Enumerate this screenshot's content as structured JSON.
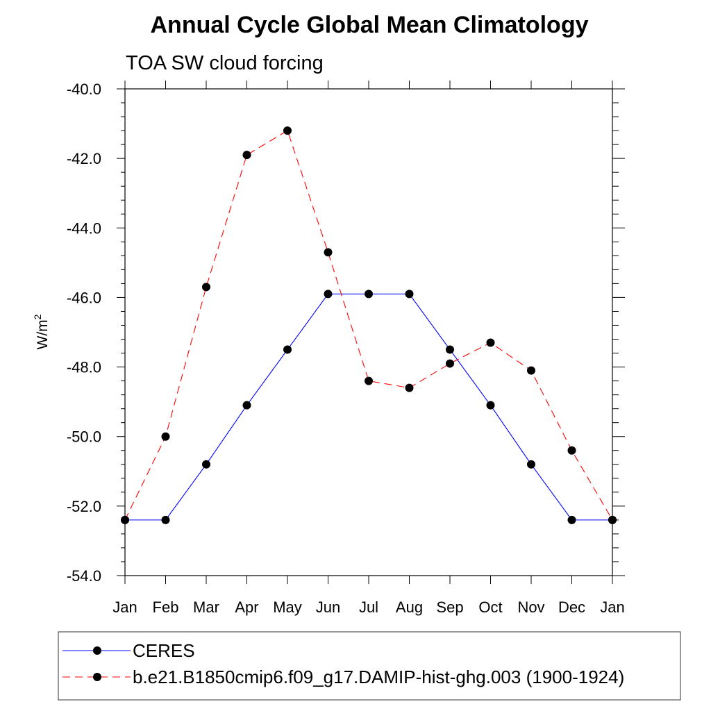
{
  "chart_data": {
    "type": "line",
    "title": "Annual Cycle Global Mean Climatology",
    "subtitle": "TOA SW cloud forcing",
    "ylabel": "W/m",
    "ylabel_sup": "2",
    "ylim": [
      -54.0,
      -40.0
    ],
    "yticks": [
      "-40.0",
      "-42.0",
      "-44.0",
      "-46.0",
      "-48.0",
      "-50.0",
      "-52.0",
      "-54.0"
    ],
    "ytick_values": [
      -40,
      -42,
      -44,
      -46,
      -48,
      -50,
      -52,
      -54
    ],
    "categories": [
      "Jan",
      "Feb",
      "Mar",
      "Apr",
      "May",
      "Jun",
      "Jul",
      "Aug",
      "Sep",
      "Oct",
      "Nov",
      "Dec",
      "Jan"
    ],
    "grid": false,
    "legend_position": "bottom",
    "series": [
      {
        "name": "CERES",
        "color": "#0000ff",
        "line": "solid",
        "marker": "filled-circle",
        "values": [
          -52.4,
          -52.4,
          -50.8,
          -49.1,
          -47.5,
          -45.9,
          -45.9,
          -45.9,
          -47.5,
          -49.1,
          -50.8,
          -52.4,
          -52.4
        ]
      },
      {
        "name": "b.e21.B1850cmip6.f09_g17.DAMIP-hist-ghg.003 (1900-1924)",
        "color": "#ff0000",
        "line": "dashed",
        "marker": "filled-circle",
        "values": [
          -52.4,
          -50.0,
          -45.7,
          -41.9,
          -41.2,
          -44.7,
          -48.4,
          -48.6,
          -47.9,
          -47.3,
          -48.1,
          -50.4,
          -52.4
        ]
      }
    ]
  }
}
